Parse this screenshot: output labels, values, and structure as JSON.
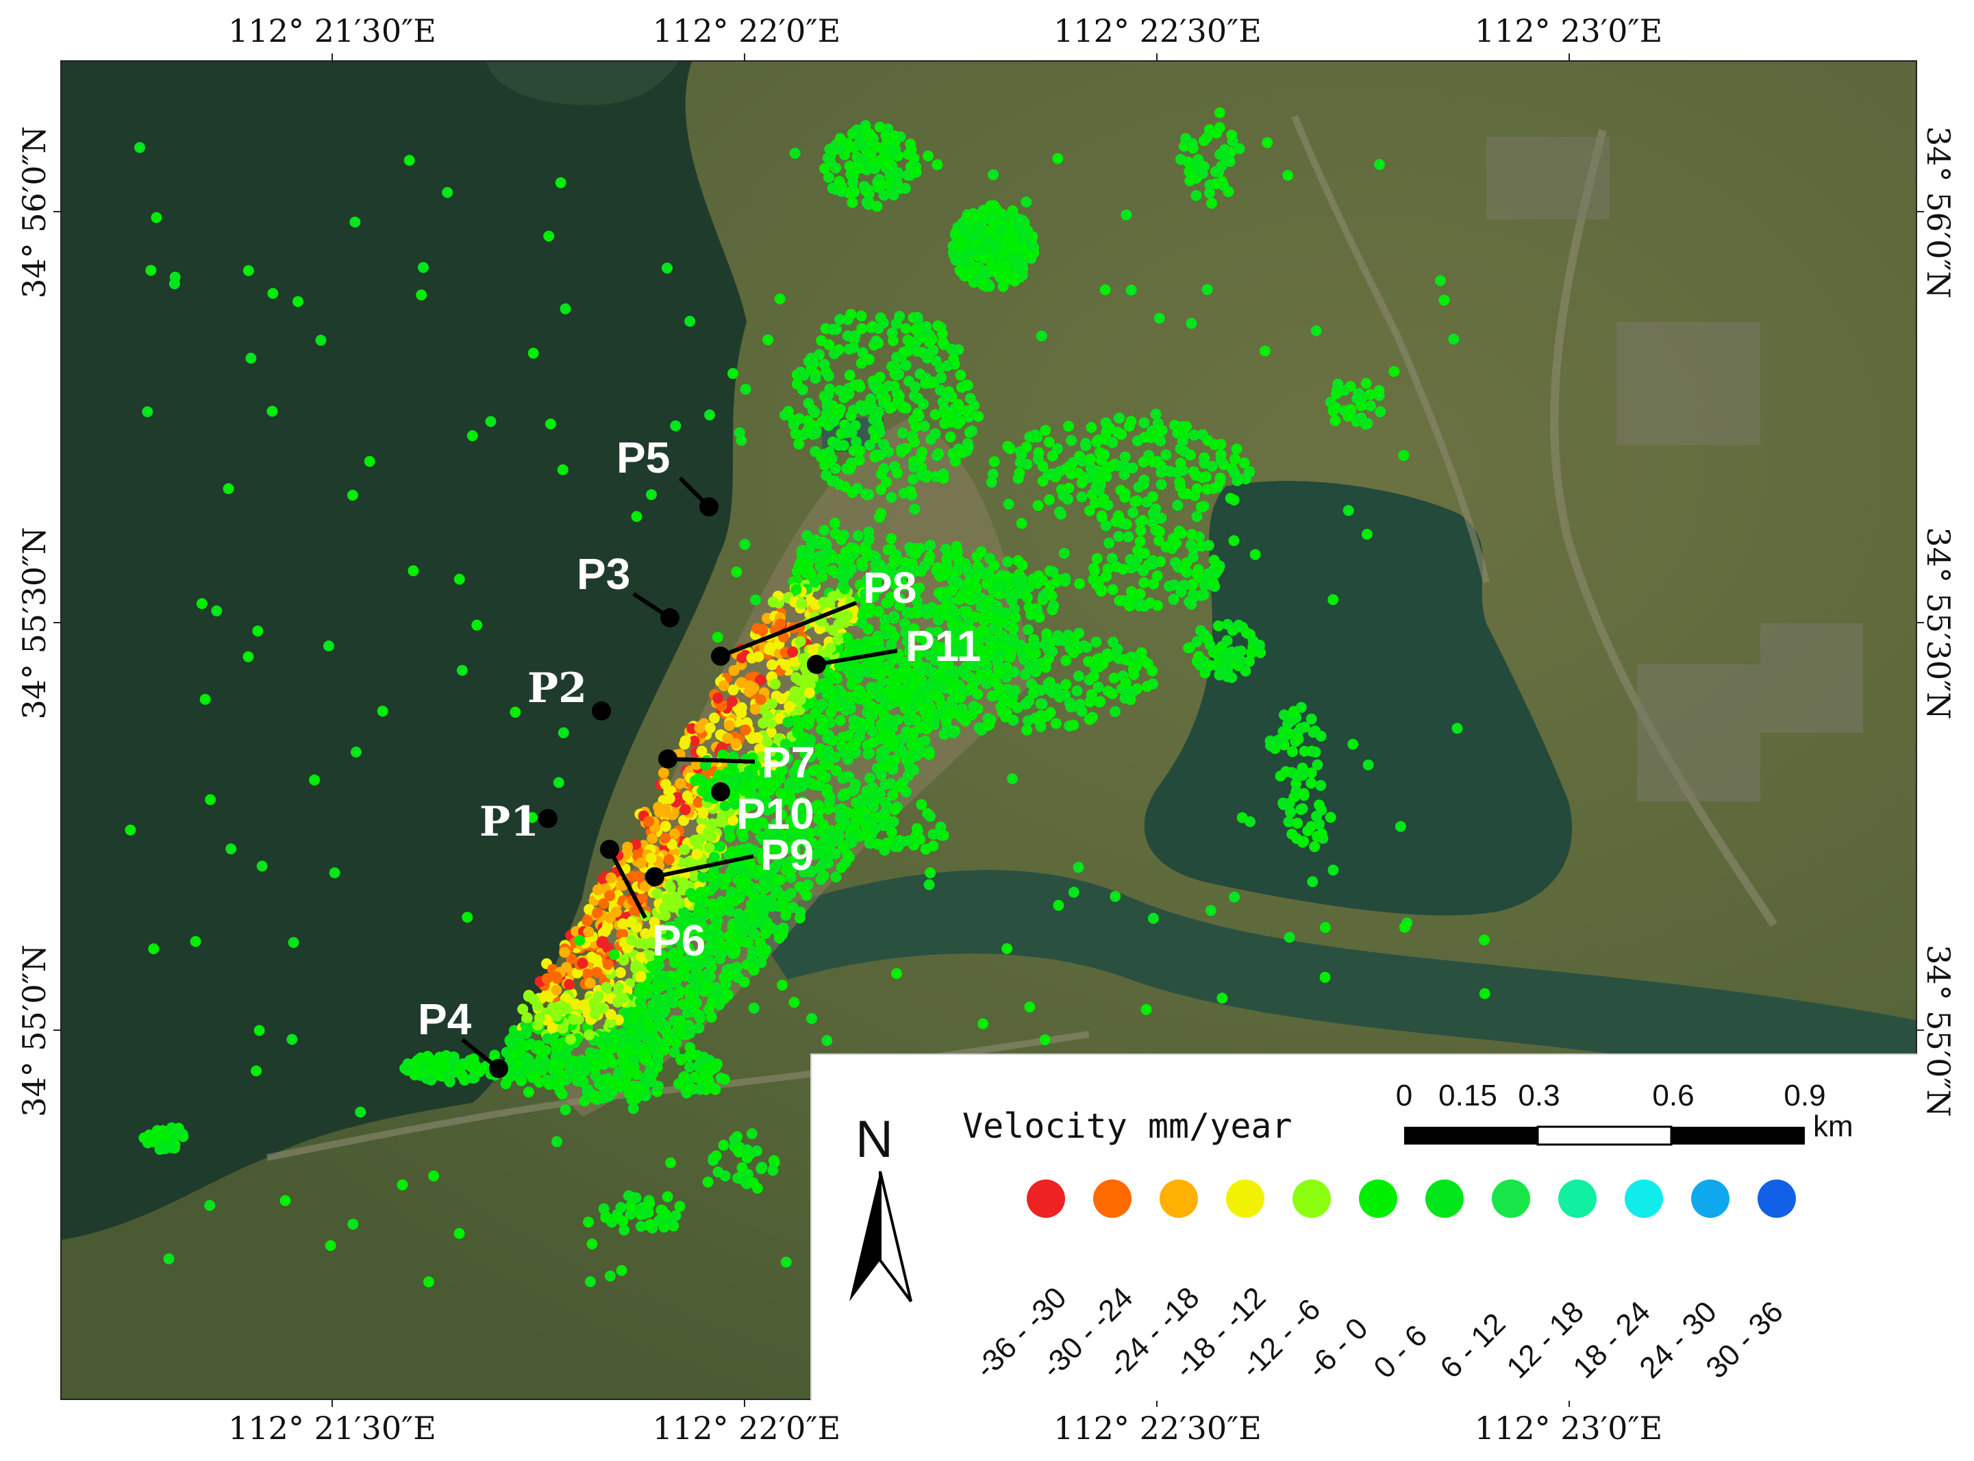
{
  "coords": {
    "top_lon": [
      "112°  21′30″E",
      "112°  22′0″E",
      "112°  22′30″E",
      "112°  23′0″E"
    ],
    "bottom_lon": [
      "112°  21′30″E",
      "112°  22′0″E",
      "112°  22′30″E",
      "112°  23′0″E"
    ],
    "left_lat": [
      "34°  56′0″N",
      "34°  55′30″N",
      "34°  55′0″N"
    ],
    "right_lat": [
      "34°  56′0″N",
      "34°  55′30″N",
      "34°  55′0″N"
    ]
  },
  "points": [
    {
      "label": "P1",
      "style": "serif"
    },
    {
      "label": "P2",
      "style": "serif"
    },
    {
      "label": "P3",
      "style": "sans"
    },
    {
      "label": "P4",
      "style": "sans"
    },
    {
      "label": "P5",
      "style": "sans"
    },
    {
      "label": "P6",
      "style": "sans"
    },
    {
      "label": "P7",
      "style": "sans"
    },
    {
      "label": "P8",
      "style": "sans"
    },
    {
      "label": "P9",
      "style": "sans"
    },
    {
      "label": "P10",
      "style": "sans"
    },
    {
      "label": "P11",
      "style": "sans"
    }
  ],
  "legend": {
    "title": "Velocity mm/year",
    "north_label": "N",
    "scale_ticks": [
      "0",
      "0.15",
      "0.3",
      "0.6",
      "0.9"
    ],
    "scale_unit": "km",
    "classes": [
      {
        "label": "-36 - -30",
        "color": "#ee2222"
      },
      {
        "label": "-30 - -24",
        "color": "#ff6a00"
      },
      {
        "label": "-24 - -18",
        "color": "#ffb000"
      },
      {
        "label": "-18 - -12",
        "color": "#f2f200"
      },
      {
        "label": "-12 - -6",
        "color": "#8cff10"
      },
      {
        "label": "-6 - 0",
        "color": "#00ee00"
      },
      {
        "label": "0 - 6",
        "color": "#00e61a"
      },
      {
        "label": "6 - 12",
        "color": "#18e648"
      },
      {
        "label": "12 - 18",
        "color": "#10f0a0"
      },
      {
        "label": "18 - 24",
        "color": "#10ecec"
      },
      {
        "label": "24 - 30",
        "color": "#10a8ec"
      },
      {
        "label": "30 - 36",
        "color": "#1060e8"
      }
    ]
  },
  "colors": {
    "water": "#1e3a2c",
    "land": "#5a6a38",
    "point_marker": "#000000"
  }
}
